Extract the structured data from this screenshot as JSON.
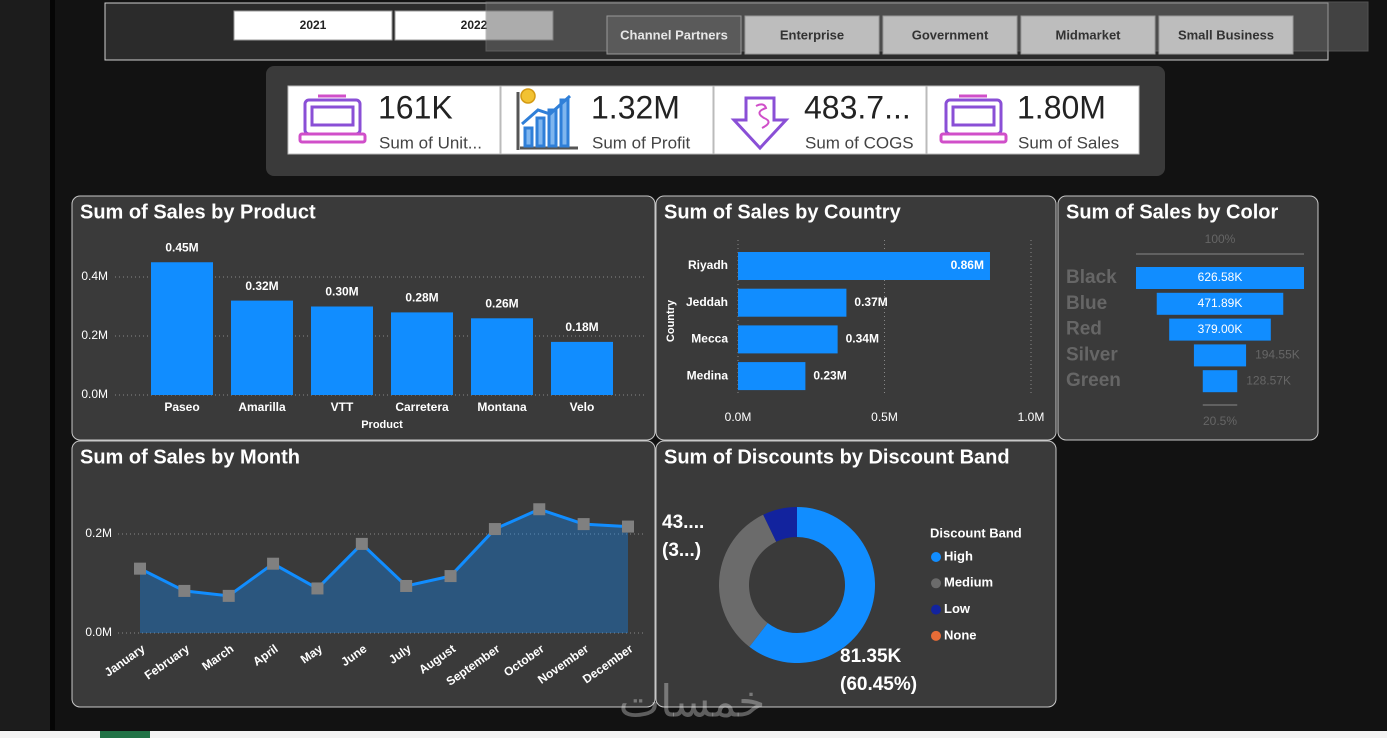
{
  "slicers": {
    "years": [
      "2021",
      "2022"
    ],
    "segments": [
      "Channel Partners",
      "Enterprise",
      "Government",
      "Midmarket",
      "Small Business"
    ]
  },
  "kpis": [
    {
      "value": "161K",
      "label": "Sum of Unit..."
    },
    {
      "value": "1.32M",
      "label": "Sum of Profit"
    },
    {
      "value": "483.7...",
      "label": "Sum of COGS"
    },
    {
      "value": "1.80M",
      "label": "Sum of Sales"
    }
  ],
  "watermark": "خمسات",
  "chart_data": [
    {
      "type": "bar",
      "title": "Sum of Sales by Product",
      "x_label": "Product",
      "categories": [
        "Paseo",
        "Amarilla",
        "VTT",
        "Carretera",
        "Montana",
        "Velo"
      ],
      "values": [
        0.45,
        0.32,
        0.3,
        0.28,
        0.26,
        0.18
      ],
      "value_labels": [
        "0.45M",
        "0.32M",
        "0.30M",
        "0.28M",
        "0.26M",
        "0.18M"
      ],
      "color": "#118DFF",
      "ylim": [
        0,
        0.5
      ],
      "yticks": [
        {
          "value": 0,
          "label": "0.0M"
        },
        {
          "value": 0.2,
          "label": "0.2M"
        },
        {
          "value": 0.4,
          "label": "0.4M"
        }
      ],
      "grid": true
    },
    {
      "type": "hbar",
      "title": "Sum of Sales by Country",
      "y_label": "Country",
      "categories": [
        "Riyadh",
        "Jeddah",
        "Mecca",
        "Medina"
      ],
      "values": [
        0.86,
        0.37,
        0.34,
        0.23
      ],
      "value_labels": [
        "0.86M",
        "0.37M",
        "0.34M",
        "0.23M"
      ],
      "color": "#118DFF",
      "xlim": [
        0,
        1.0
      ],
      "xticks": [
        {
          "value": 0,
          "label": "0.0M"
        },
        {
          "value": 0.5,
          "label": "0.5M"
        },
        {
          "value": 1.0,
          "label": "1.0M"
        }
      ],
      "grid": true
    },
    {
      "type": "funnel",
      "title": "Sum of Sales by Color",
      "categories": [
        "Black",
        "Blue",
        "Red",
        "Silver",
        "Green"
      ],
      "values": [
        626.58,
        471.89,
        379.0,
        194.55,
        128.57
      ],
      "value_labels": [
        "626.58K",
        "471.89K",
        "379.00K",
        "194.55K",
        "128.57K"
      ],
      "top_label": "100%",
      "bottom_label": "20.5%",
      "color": "#118DFF"
    },
    {
      "type": "area",
      "title": "Sum of Sales by Month",
      "categories": [
        "January",
        "February",
        "March",
        "April",
        "May",
        "June",
        "July",
        "August",
        "September",
        "October",
        "November",
        "December"
      ],
      "values": [
        0.13,
        0.085,
        0.075,
        0.14,
        0.09,
        0.18,
        0.095,
        0.115,
        0.21,
        0.25,
        0.22,
        0.215
      ],
      "color": "#118DFF",
      "marker_color": "#808080",
      "ylim": [
        0,
        0.28
      ],
      "yticks": [
        {
          "value": 0,
          "label": "0.0M"
        },
        {
          "value": 0.2,
          "label": "0.2M"
        }
      ],
      "grid": true
    },
    {
      "type": "donut",
      "title": "Sum of Discounts by Discount Band",
      "legend_title": "Discount Band",
      "categories": [
        "High",
        "Medium",
        "Low",
        "None"
      ],
      "values": [
        81.35,
        43.6,
        9.6,
        0
      ],
      "value_labels": [
        [
          "81.35K",
          "(60.45%)"
        ],
        [
          "43....",
          "(3...)"
        ],
        null,
        null
      ],
      "colors": [
        "#118DFF",
        "#6B6B6B",
        "#12239E",
        "#E66C37"
      ]
    }
  ]
}
